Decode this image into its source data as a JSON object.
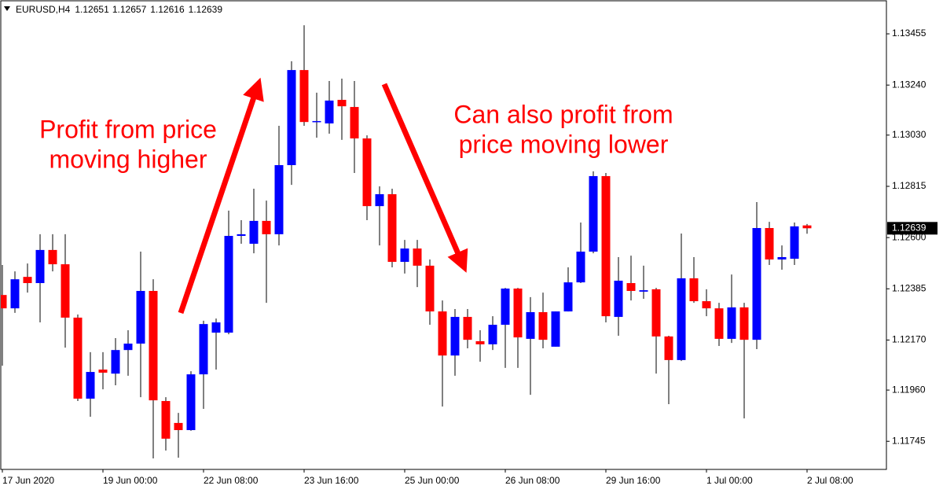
{
  "chart_data": {
    "type": "candlestick",
    "symbol": "EURUSD,H4",
    "up_color": "#0000ff",
    "down_color": "#ff0000",
    "categories": [
      "17 Jun 2020",
      null,
      null,
      null,
      null,
      null,
      null,
      null,
      "19 Jun 00:00",
      null,
      null,
      null,
      null,
      null,
      null,
      null,
      "22 Jun 08:00",
      null,
      null,
      null,
      null,
      null,
      null,
      null,
      "23 Jun 16:00",
      null,
      null,
      null,
      null,
      null,
      null,
      null,
      "25 Jun 00:00",
      null,
      null,
      null,
      null,
      null,
      null,
      null,
      "26 Jun 08:00",
      null,
      null,
      null,
      null,
      null,
      null,
      null,
      "29 Jun 16:00",
      null,
      null,
      null,
      null,
      null,
      null,
      null,
      "1 Jul 00:00",
      null,
      null,
      null,
      null,
      null,
      null,
      null,
      "2 Jul 08:00"
    ],
    "open": [
      1.12359,
      1.12303,
      1.12435,
      1.12409,
      1.12548,
      1.12488,
      1.12264,
      1.11924,
      1.12046,
      1.12029,
      1.12128,
      1.12155,
      1.12376,
      1.11914,
      1.11822,
      1.11792,
      1.12026,
      1.12201,
      1.12201,
      1.12607,
      1.12574,
      1.1267,
      1.12614,
      1.12904,
      1.13303,
      1.13089,
      1.13079,
      1.13178,
      1.13148,
      1.13016,
      1.12732,
      1.12782,
      1.12498,
      1.12554,
      1.12482,
      1.1229,
      1.12105,
      1.12267,
      1.12165,
      1.12152,
      1.12234,
      1.12386,
      1.12175,
      1.12287,
      1.12142,
      1.1229,
      1.12412,
      1.12541,
      1.12858,
      1.12267,
      1.12409,
      1.12373,
      1.12383,
      1.12185,
      1.12086,
      1.12429,
      1.12333,
      1.12303,
      1.12175,
      1.12307,
      1.12171,
      1.1264,
      1.12508,
      1.12511,
      1.12651
    ],
    "high": [
      1.12485,
      1.12458,
      1.12491,
      1.12614,
      1.12614,
      1.12614,
      1.12277,
      1.12119,
      1.12119,
      1.12178,
      1.12211,
      1.12541,
      1.12425,
      1.1193,
      1.11864,
      1.12039,
      1.12251,
      1.1226,
      1.12713,
      1.12673,
      1.12805,
      1.12755,
      1.13069,
      1.1334,
      1.13491,
      1.13208,
      1.13257,
      1.13267,
      1.13257,
      1.13029,
      1.12815,
      1.12805,
      1.1259,
      1.1259,
      1.12508,
      1.12336,
      1.123,
      1.123,
      1.12211,
      1.1227,
      1.12389,
      1.12389,
      1.1235,
      1.12369,
      1.1229,
      1.12475,
      1.12663,
      1.12878,
      1.12871,
      1.12518,
      1.12524,
      1.12482,
      1.12389,
      1.12188,
      1.12617,
      1.12518,
      1.12383,
      1.12326,
      1.12445,
      1.12326,
      1.12749,
      1.12666,
      1.12567,
      1.12663,
      1.12657
    ],
    "low": [
      1.12062,
      1.12284,
      1.12369,
      1.12244,
      1.12458,
      1.12138,
      1.11914,
      1.11848,
      1.11963,
      1.1198,
      1.1202,
      1.1193,
      1.11673,
      1.11706,
      1.11676,
      1.11789,
      1.11881,
      1.12046,
      1.12194,
      1.12574,
      1.12534,
      1.12326,
      1.12567,
      1.12821,
      1.13069,
      1.13019,
      1.13036,
      1.1301,
      1.12871,
      1.12673,
      1.12567,
      1.12475,
      1.12449,
      1.12392,
      1.12234,
      1.11891,
      1.1202,
      1.12135,
      1.12079,
      1.12128,
      1.12053,
      1.12053,
      1.1194,
      1.12135,
      1.12142,
      1.1229,
      1.12409,
      1.12534,
      1.12244,
      1.12188,
      1.12336,
      1.12343,
      1.12029,
      1.11901,
      1.12082,
      1.12326,
      1.1227,
      1.12145,
      1.12158,
      1.11841,
      1.12132,
      1.12485,
      1.12465,
      1.12485,
      1.12616
    ],
    "close": [
      1.12303,
      1.12425,
      1.12409,
      1.12548,
      1.12488,
      1.12264,
      1.11924,
      1.12036,
      1.12033,
      1.12128,
      1.12155,
      1.12376,
      1.11917,
      1.11756,
      1.11792,
      1.12026,
      1.12237,
      1.12244,
      1.12607,
      1.12614,
      1.1267,
      1.12614,
      1.12904,
      1.13303,
      1.13085,
      1.13089,
      1.13175,
      1.13151,
      1.13016,
      1.12732,
      1.12782,
      1.12498,
      1.12554,
      1.12482,
      1.1229,
      1.12105,
      1.12267,
      1.12171,
      1.12152,
      1.12234,
      1.12386,
      1.12181,
      1.12287,
      1.12171,
      1.1229,
      1.12412,
      1.12541,
      1.12858,
      1.1227,
      1.12419,
      1.12376,
      1.12379,
      1.12185,
      1.12086,
      1.12429,
      1.12333,
      1.12303,
      1.12175,
      1.12307,
      1.12171,
      1.1264,
      1.12508,
      1.12518,
      1.12647,
      1.12639
    ],
    "ylim": [
      1.11627,
      1.13597
    ],
    "yticks": [
      1.13455,
      {
        "value": 1.1324,
        "label": "1.13240"
      },
      {
        "value": 1.1303,
        "label": "1.13030"
      },
      1.12815,
      {
        "value": 1.126,
        "label": "1.12600"
      },
      1.12385,
      {
        "value": 1.1217,
        "label": "1.12170"
      },
      {
        "value": 1.1196,
        "label": "1.11960"
      },
      1.11745
    ],
    "annotations": [
      {
        "lines": [
          "Profit from price",
          "moving higher"
        ]
      },
      {
        "lines": [
          "Can also profit from",
          "price moving lower"
        ]
      }
    ]
  }
}
